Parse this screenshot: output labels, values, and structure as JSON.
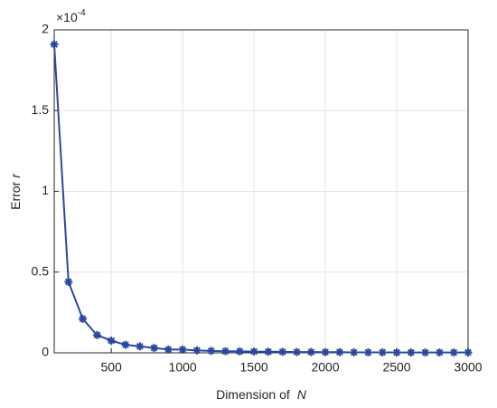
{
  "chart_data": {
    "type": "line",
    "x": [
      100,
      200,
      300,
      400,
      500,
      600,
      700,
      800,
      900,
      1000,
      1100,
      1200,
      1300,
      1400,
      1500,
      1600,
      1700,
      1800,
      1900,
      2000,
      2100,
      2200,
      2300,
      2400,
      2500,
      2600,
      2700,
      2800,
      2900,
      3000
    ],
    "series": [
      {
        "color": "#2b48a0",
        "values": [
          1.91,
          0.44,
          0.21,
          0.11,
          0.075,
          0.05,
          0.04,
          0.03,
          0.02,
          0.02,
          0.015,
          0.012,
          0.01,
          0.009,
          0.008,
          0.007,
          0.006,
          0.005,
          0.005,
          0.004,
          0.004,
          0.003,
          0.003,
          0.003,
          0.002,
          0.002,
          0.002,
          0.002,
          0.002,
          0.002
        ]
      }
    ],
    "xlim": [
      100,
      3000
    ],
    "xticks": [
      500,
      1000,
      1500,
      2000,
      2500,
      3000
    ],
    "ylim": [
      0,
      2
    ],
    "yticks": [
      0,
      0.5,
      1,
      1.5,
      2
    ],
    "xlabel": "Dimension of",
    "xlabel_symbol": "N",
    "ylabel": "Error",
    "ylabel_symbol": "r",
    "y_multiplier": "×10",
    "y_multiplier_exponent": "-4",
    "grid": true
  }
}
